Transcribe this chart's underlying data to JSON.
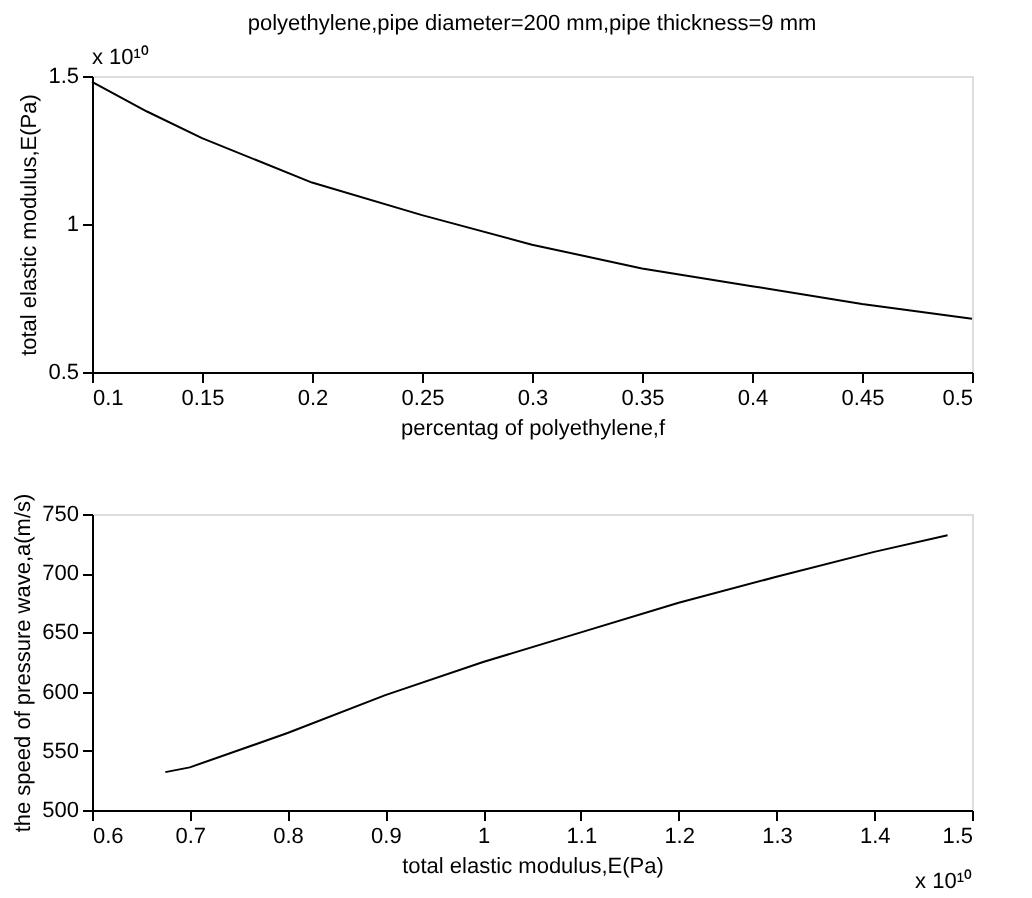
{
  "chart_data": [
    {
      "type": "line",
      "title": "polyethylene,pipe diameter=200 mm,pipe thickness=9 mm",
      "xlabel": "percentag of polyethylene,f",
      "ylabel": "total elastic modulus,E(Pa)",
      "x": [
        0.1,
        0.125,
        0.15,
        0.2,
        0.25,
        0.3,
        0.35,
        0.4,
        0.45,
        0.5
      ],
      "series": [
        {
          "color": "#000000",
          "values": [
            1.48,
            1.38,
            1.29,
            1.14,
            1.03,
            0.93,
            0.85,
            0.79,
            0.73,
            0.68
          ]
        }
      ],
      "xlim": [
        0.1,
        0.5
      ],
      "ylim": [
        0.5,
        1.5
      ],
      "xticks": [
        0.1,
        0.15,
        0.2,
        0.25,
        0.3,
        0.35,
        0.4,
        0.45,
        0.5
      ],
      "yticks": [
        0.5,
        1,
        1.5
      ],
      "annotations": [
        "x 10¹⁰"
      ],
      "grid": false
    },
    {
      "type": "line",
      "xlabel": "total elastic modulus,E(Pa)",
      "ylabel": "the speed of pressure wave,a(m/s)",
      "x": [
        0.675,
        0.7,
        0.8,
        0.9,
        1.0,
        1.1,
        1.2,
        1.3,
        1.4,
        1.475
      ],
      "series": [
        {
          "color": "#000000",
          "values": [
            532,
            536,
            565,
            597,
            625,
            650,
            675,
            697,
            718,
            732
          ]
        }
      ],
      "xlim": [
        0.6,
        1.5
      ],
      "ylim": [
        500,
        750
      ],
      "xticks": [
        0.6,
        0.7,
        0.8,
        0.9,
        1,
        1.1,
        1.2,
        1.3,
        1.4,
        1.5
      ],
      "yticks": [
        500,
        550,
        600,
        650,
        700,
        750
      ],
      "annotations": [
        "x 10¹⁰"
      ],
      "grid": false
    }
  ]
}
